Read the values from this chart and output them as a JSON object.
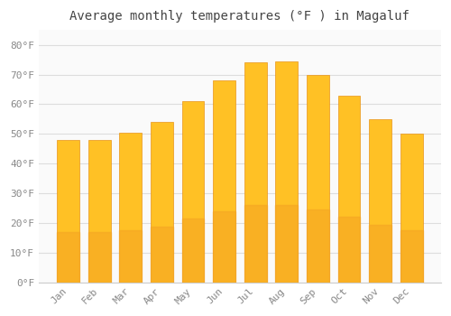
{
  "title": "Average monthly temperatures (°F ) in Magaluf",
  "months": [
    "Jan",
    "Feb",
    "Mar",
    "Apr",
    "May",
    "Jun",
    "Jul",
    "Aug",
    "Sep",
    "Oct",
    "Nov",
    "Dec"
  ],
  "values": [
    48,
    48,
    50.5,
    54,
    61,
    68,
    74,
    74.5,
    70,
    63,
    55,
    50
  ],
  "bar_color_top": "#FFC125",
  "bar_color_bottom": "#F5A623",
  "bar_edge_color": "#E8941A",
  "background_color": "#FFFFFF",
  "plot_bg_color": "#FAFAFA",
  "grid_color": "#DDDDDD",
  "tick_label_color": "#888888",
  "title_color": "#444444",
  "ylim": [
    0,
    85
  ],
  "yticks": [
    0,
    10,
    20,
    30,
    40,
    50,
    60,
    70,
    80
  ],
  "ytick_labels": [
    "0°F",
    "10°F",
    "20°F",
    "30°F",
    "40°F",
    "50°F",
    "60°F",
    "70°F",
    "80°F"
  ],
  "title_fontsize": 10,
  "tick_fontsize": 8
}
